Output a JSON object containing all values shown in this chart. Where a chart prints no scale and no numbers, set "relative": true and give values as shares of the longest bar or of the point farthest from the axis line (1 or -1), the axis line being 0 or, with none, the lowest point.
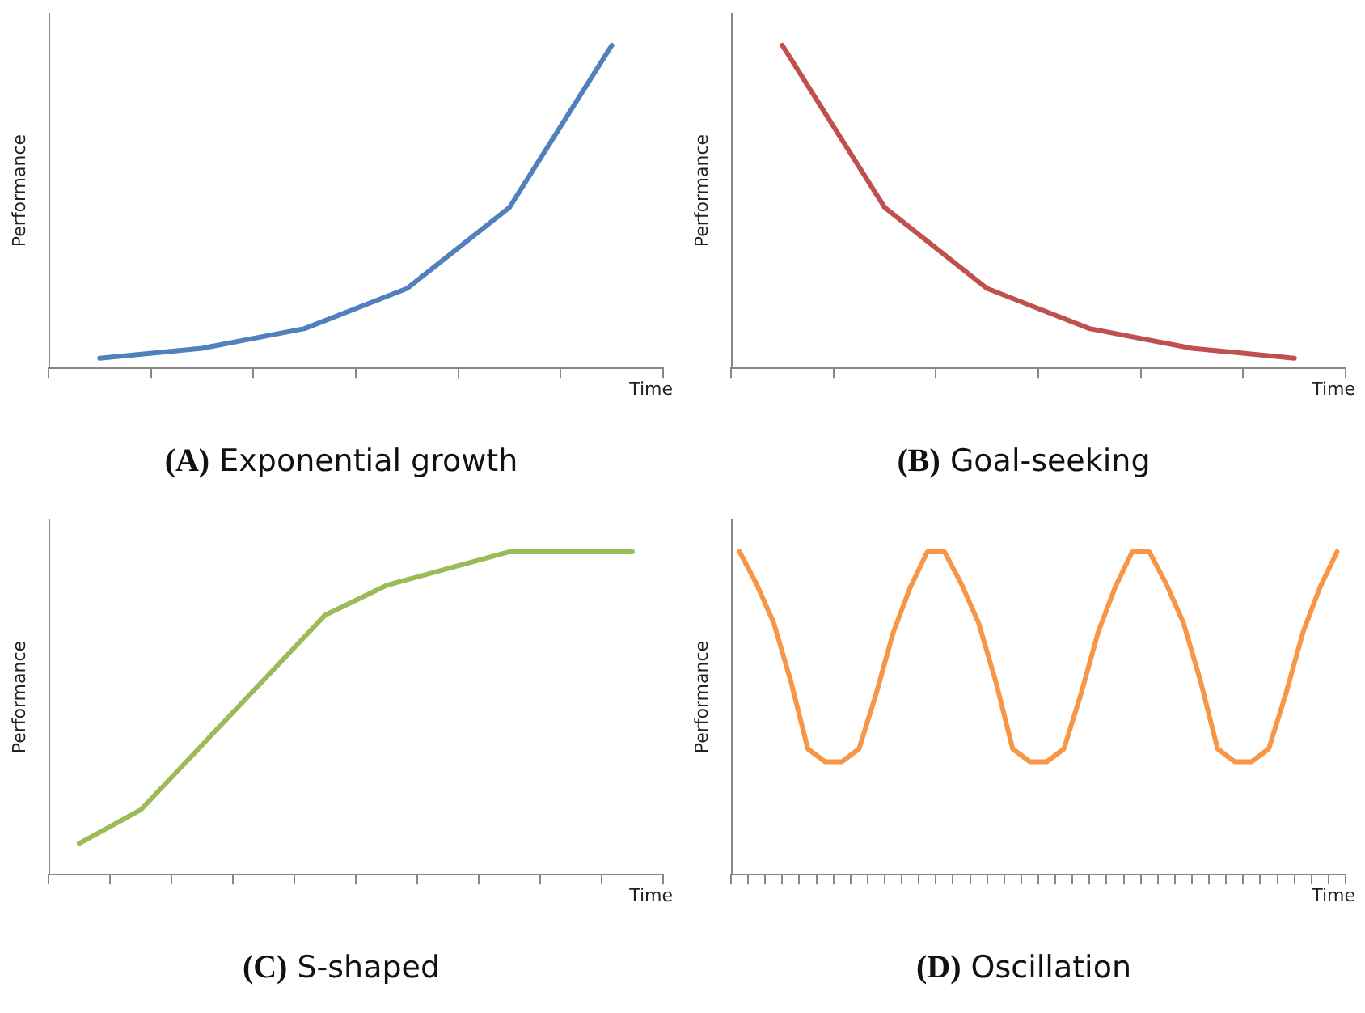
{
  "chart_data": [
    {
      "type": "line",
      "title": "(A) Exponential growth",
      "xlabel": "Time",
      "ylabel": "Performance",
      "relative": true,
      "categories": [
        null,
        null,
        null,
        null,
        null,
        null
      ],
      "series": [
        {
          "color": "#4f81bd",
          "values": [
            0.031,
            0.062,
            0.123,
            0.247,
            0.498,
            1
          ]
        }
      ]
    },
    {
      "type": "line",
      "title": "(B) Goal-seeking",
      "xlabel": "Time",
      "ylabel": "Performance",
      "relative": true,
      "categories": [
        null,
        null,
        null,
        null,
        null,
        null
      ],
      "series": [
        {
          "color": "#c0504d",
          "values": [
            1,
            0.498,
            0.247,
            0.123,
            0.062,
            0.031
          ]
        }
      ]
    },
    {
      "type": "line",
      "title": "(C) S-shaped",
      "xlabel": "Time",
      "ylabel": "Performance",
      "relative": true,
      "categories": [
        null,
        null,
        null,
        null,
        null,
        null,
        null,
        null,
        null,
        null
      ],
      "series": [
        {
          "color": "#9bbb59",
          "values": [
            0.097,
            0.201,
            0.402,
            0.603,
            0.804,
            0.896,
            0.948,
            1,
            1,
            1
          ]
        }
      ]
    },
    {
      "type": "line",
      "title": "(D) Oscillation",
      "xlabel": "Time",
      "ylabel": "Performance",
      "relative": true,
      "categories": [
        null,
        null,
        null,
        null,
        null,
        null,
        null,
        null,
        null,
        null,
        null,
        null,
        null,
        null,
        null,
        null,
        null,
        null,
        null,
        null,
        null,
        null,
        null,
        null,
        null,
        null,
        null,
        null,
        null,
        null,
        null,
        null,
        null,
        null,
        null,
        null
      ],
      "series": [
        {
          "color": "#f79646",
          "values": [
            1,
            0.9,
            0.78,
            0.6,
            0.39,
            0.35,
            0.35,
            0.39,
            0.56,
            0.75,
            0.89,
            1,
            1,
            0.9,
            0.78,
            0.6,
            0.39,
            0.35,
            0.35,
            0.39,
            0.56,
            0.75,
            0.89,
            1,
            1,
            0.9,
            0.78,
            0.6,
            0.39,
            0.35,
            0.35,
            0.39,
            0.56,
            0.75,
            0.89,
            1
          ]
        }
      ]
    }
  ]
}
